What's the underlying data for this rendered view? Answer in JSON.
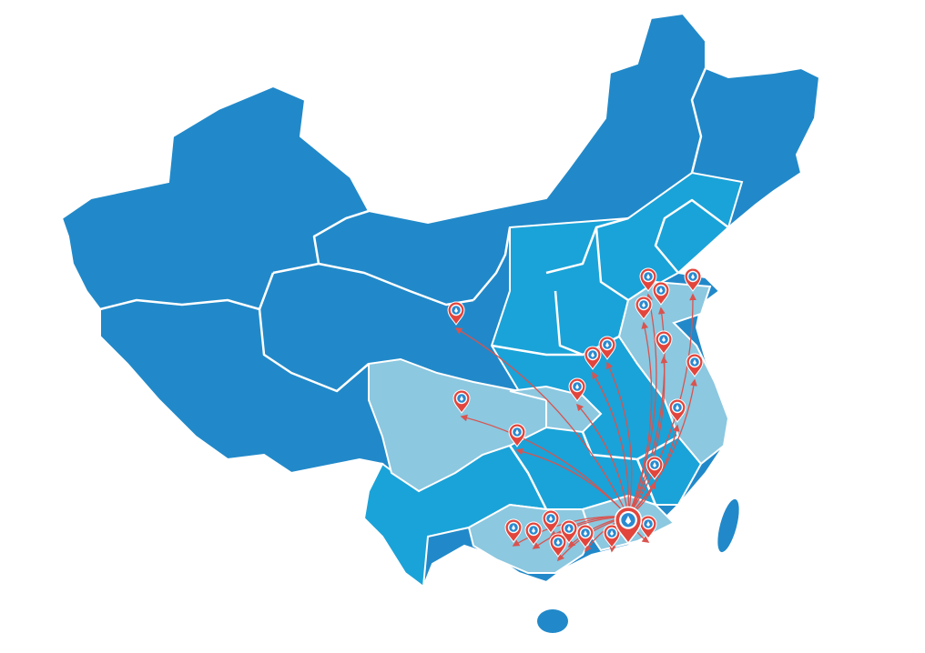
{
  "map": {
    "colors": {
      "dark_region": "#2189c9",
      "medium_region": "#1aa3d8",
      "light_region": "#8cc8e0",
      "border": "#ffffff",
      "marker": "#e2453c",
      "arrow": "#d9534f"
    },
    "marker_icon": "location-pin-icon",
    "hub_marker_icon": "location-pin-icon-large"
  }
}
